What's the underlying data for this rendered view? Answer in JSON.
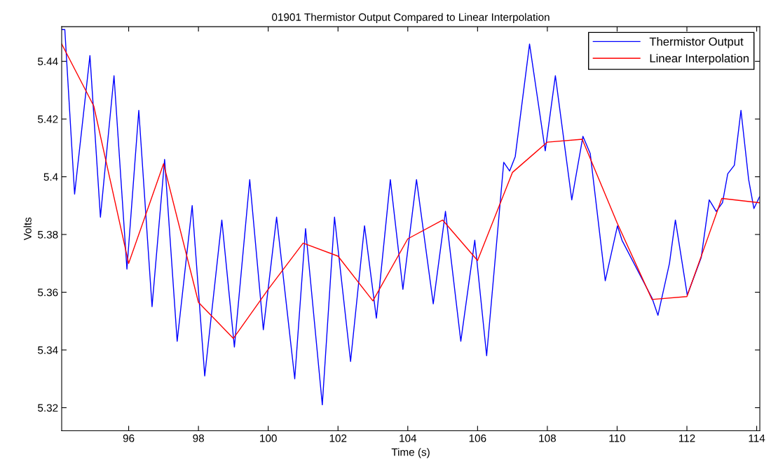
{
  "chart_data": {
    "type": "line",
    "title": "01901 Thermistor Output Compared to Linear Interpolation",
    "xlabel": "Time (s)",
    "ylabel": "Volts",
    "xlim": [
      94.08,
      114.09
    ],
    "ylim": [
      5.312,
      5.452
    ],
    "xticks": [
      96,
      98,
      100,
      102,
      104,
      106,
      108,
      110,
      112,
      114
    ],
    "yticks": [
      5.32,
      5.34,
      5.36,
      5.38,
      5.4,
      5.42,
      5.44
    ],
    "grid": false,
    "legend": "top right",
    "marker": "none",
    "line_style": "solid",
    "series": [
      {
        "name": "Thermistor Output",
        "color": "#0000ff",
        "x": [
          94.08,
          94.17,
          94.45,
          94.89,
          95.19,
          95.58,
          95.95,
          96.29,
          96.67,
          97.03,
          97.39,
          97.82,
          98.18,
          98.67,
          99.03,
          99.47,
          99.86,
          100.24,
          100.76,
          101.07,
          101.55,
          101.9,
          102.36,
          102.76,
          103.1,
          103.5,
          103.86,
          104.25,
          104.73,
          105.08,
          105.52,
          105.92,
          106.26,
          106.75,
          106.92,
          107.08,
          107.49,
          107.94,
          108.23,
          108.7,
          109.02,
          109.23,
          109.66,
          110.01,
          110.14,
          110.74,
          111.0,
          111.17,
          111.5,
          111.67,
          112.01,
          112.41,
          112.64,
          112.84,
          113.02,
          113.17,
          113.36,
          113.55,
          113.77,
          113.92,
          114.08
        ],
        "values": [
          5.451,
          5.451,
          5.394,
          5.442,
          5.386,
          5.435,
          5.368,
          5.423,
          5.355,
          5.406,
          5.343,
          5.39,
          5.331,
          5.385,
          5.341,
          5.399,
          5.347,
          5.386,
          5.33,
          5.382,
          5.321,
          5.386,
          5.336,
          5.383,
          5.351,
          5.399,
          5.361,
          5.399,
          5.356,
          5.388,
          5.343,
          5.378,
          5.338,
          5.405,
          5.402,
          5.407,
          5.446,
          5.409,
          5.435,
          5.392,
          5.414,
          5.408,
          5.364,
          5.383,
          5.378,
          5.364,
          5.358,
          5.352,
          5.37,
          5.385,
          5.359,
          5.372,
          5.392,
          5.388,
          5.391,
          5.401,
          5.404,
          5.423,
          5.399,
          5.389,
          5.393
        ]
      },
      {
        "name": "Linear Interpolation",
        "color": "#ff0000",
        "x": [
          94.08,
          95,
          96,
          97,
          98,
          99,
          100,
          101,
          102,
          103,
          104,
          105,
          106,
          107,
          108,
          109,
          110,
          111,
          112,
          113,
          114.08
        ],
        "values": [
          5.446,
          5.4245,
          5.37,
          5.4045,
          5.3565,
          5.344,
          5.361,
          5.377,
          5.3725,
          5.357,
          5.3785,
          5.385,
          5.371,
          5.4015,
          5.412,
          5.413,
          5.384,
          5.3575,
          5.3585,
          5.3925,
          5.391
        ]
      }
    ]
  }
}
